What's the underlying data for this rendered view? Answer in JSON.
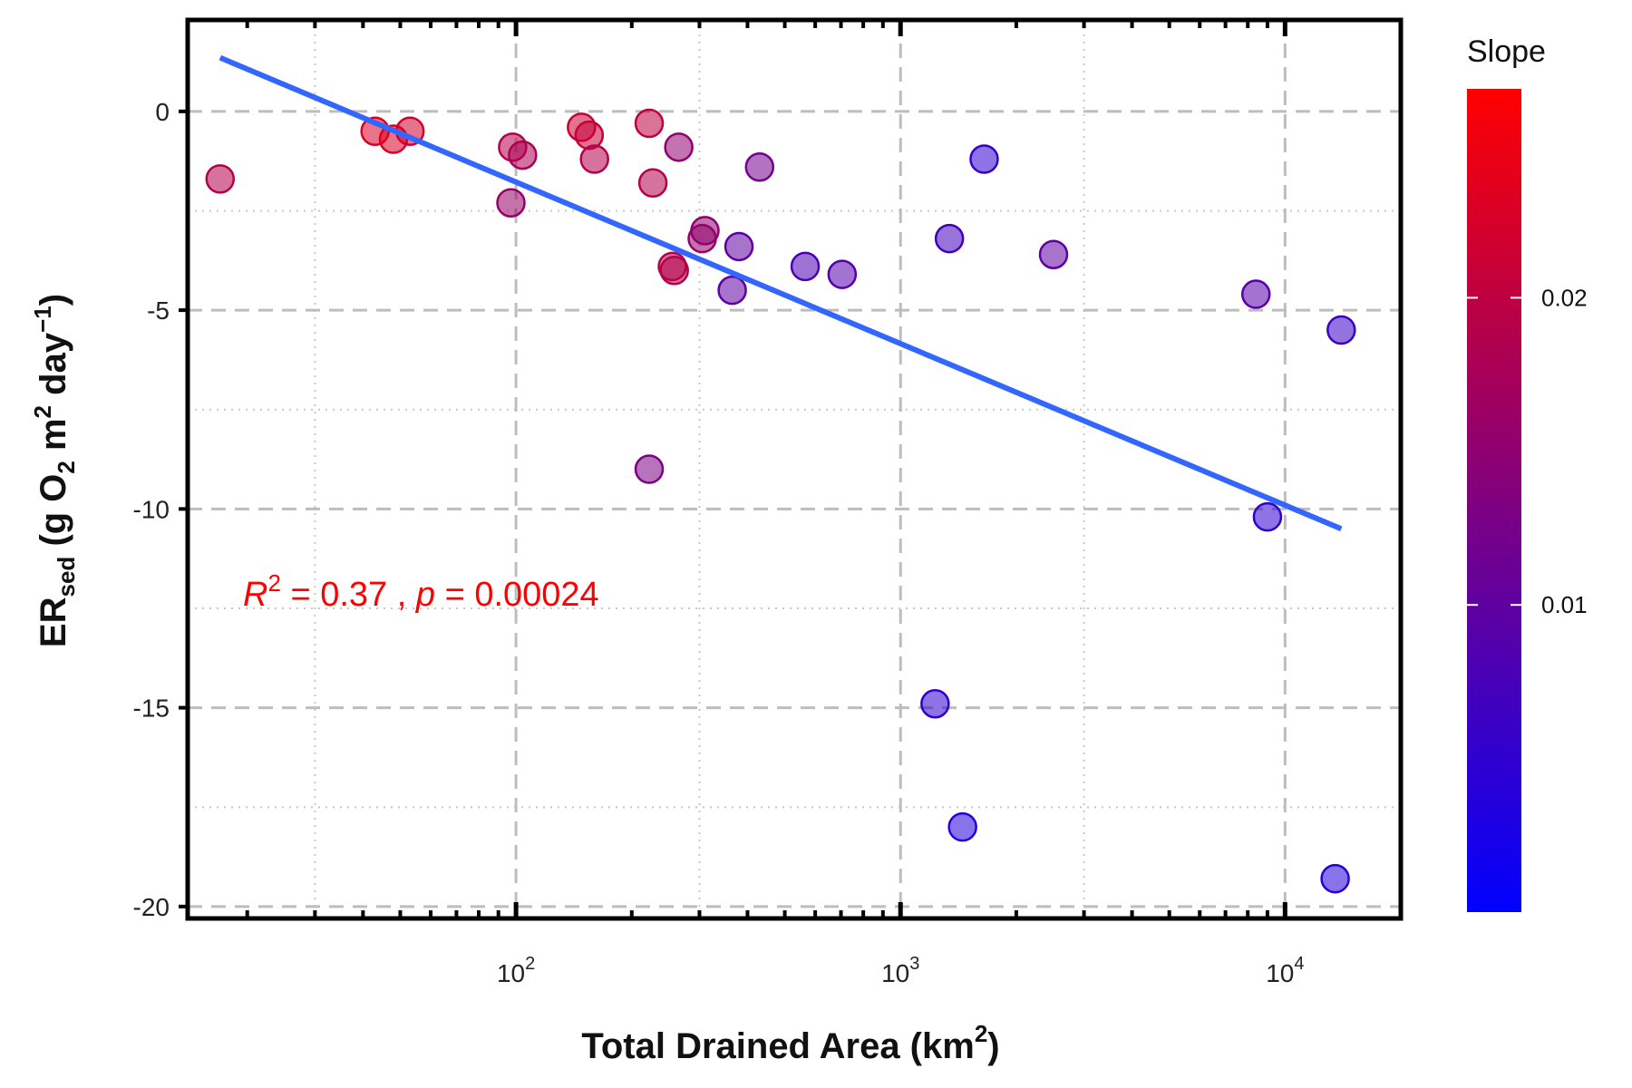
{
  "chart_data": {
    "type": "scatter",
    "title": "",
    "xscale": "log",
    "xlim": [
      14,
      20000
    ],
    "ylim": [
      -20.3,
      2.3
    ],
    "grid": true,
    "xlabel": {
      "main": "Total Drained Area (km",
      "sup": "2",
      "close": ")"
    },
    "ylabel": {
      "main": "ER",
      "sub": "sed",
      "rest": " (g O",
      "sub2": "2",
      "mid": " m",
      "sup": "2",
      "end": " day",
      "sup2": "−1",
      "close": ")"
    },
    "xticks": [
      {
        "value": 100,
        "base": "10",
        "exp": "2"
      },
      {
        "value": 1000,
        "base": "10",
        "exp": "3"
      },
      {
        "value": 10000,
        "base": "10",
        "exp": "4"
      }
    ],
    "yticks": [
      {
        "value": 0,
        "label": "0"
      },
      {
        "value": -5,
        "label": "-5"
      },
      {
        "value": -10,
        "label": "-10"
      },
      {
        "value": -15,
        "label": "-15"
      },
      {
        "value": -20,
        "label": "-20"
      }
    ],
    "color_scale": {
      "title": "Slope",
      "min": 0,
      "max": 0.0268,
      "low_color": "#0000ff",
      "high_color": "#ff0000",
      "ticks": [
        {
          "value": 0.01,
          "label": "0.01"
        },
        {
          "value": 0.02,
          "label": "0.02"
        }
      ]
    },
    "points": [
      {
        "x": 17,
        "y": -1.7,
        "slope": 0.019
      },
      {
        "x": 43,
        "y": -0.5,
        "slope": 0.023
      },
      {
        "x": 48,
        "y": -0.7,
        "slope": 0.023
      },
      {
        "x": 53,
        "y": -0.5,
        "slope": 0.022
      },
      {
        "x": 97,
        "y": -2.3,
        "slope": 0.016
      },
      {
        "x": 98,
        "y": -0.9,
        "slope": 0.019
      },
      {
        "x": 104,
        "y": -1.1,
        "slope": 0.018
      },
      {
        "x": 148,
        "y": -0.4,
        "slope": 0.021
      },
      {
        "x": 155,
        "y": -0.6,
        "slope": 0.021
      },
      {
        "x": 160,
        "y": -1.2,
        "slope": 0.019
      },
      {
        "x": 222,
        "y": -0.3,
        "slope": 0.02
      },
      {
        "x": 222,
        "y": -9.0,
        "slope": 0.013
      },
      {
        "x": 227,
        "y": -1.8,
        "slope": 0.019
      },
      {
        "x": 255,
        "y": -3.9,
        "slope": 0.019
      },
      {
        "x": 258,
        "y": -4.0,
        "slope": 0.019
      },
      {
        "x": 265,
        "y": -0.9,
        "slope": 0.015
      },
      {
        "x": 305,
        "y": -3.2,
        "slope": 0.016
      },
      {
        "x": 310,
        "y": -3.0,
        "slope": 0.015
      },
      {
        "x": 365,
        "y": -4.5,
        "slope": 0.01
      },
      {
        "x": 380,
        "y": -3.4,
        "slope": 0.01
      },
      {
        "x": 430,
        "y": -1.4,
        "slope": 0.012
      },
      {
        "x": 565,
        "y": -3.9,
        "slope": 0.008
      },
      {
        "x": 705,
        "y": -4.1,
        "slope": 0.009
      },
      {
        "x": 1230,
        "y": -14.9,
        "slope": 0.005
      },
      {
        "x": 1340,
        "y": -3.2,
        "slope": 0.007
      },
      {
        "x": 1450,
        "y": -18.0,
        "slope": 0.004
      },
      {
        "x": 1650,
        "y": -1.2,
        "slope": 0.005
      },
      {
        "x": 2500,
        "y": -3.6,
        "slope": 0.01
      },
      {
        "x": 8400,
        "y": -4.6,
        "slope": 0.009
      },
      {
        "x": 9000,
        "y": -10.2,
        "slope": 0.005
      },
      {
        "x": 13500,
        "y": -19.3,
        "slope": 0.004
      },
      {
        "x": 14000,
        "y": -5.5,
        "slope": 0.006
      }
    ],
    "fit_line": {
      "x": [
        17,
        14000
      ],
      "y": [
        1.35,
        -10.5
      ],
      "color": "#3366ff"
    },
    "annotation": {
      "r_label": "R",
      "r_exp": "2",
      "r_value": " = 0.37 , ",
      "p_label": "p",
      "p_value": " = 0.00024",
      "color": "#ff0000"
    }
  }
}
